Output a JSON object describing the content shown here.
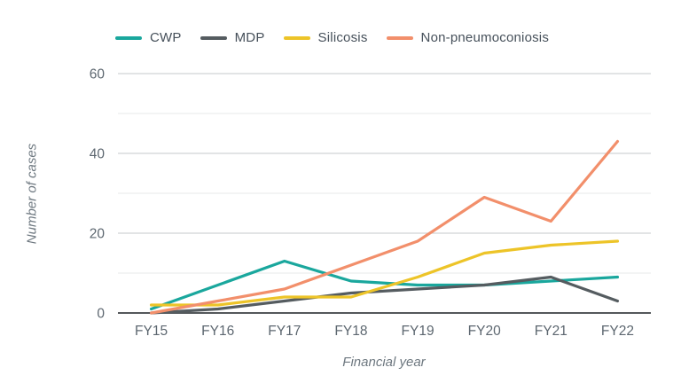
{
  "chart_data": {
    "type": "line",
    "title": "",
    "categories": [
      "FY15",
      "FY16",
      "FY17",
      "FY18",
      "FY19",
      "FY20",
      "FY21",
      "FY22"
    ],
    "series": [
      {
        "name": "CWP",
        "color": "#1aa79d",
        "values": [
          1,
          7,
          13,
          8,
          7,
          7,
          8,
          9
        ]
      },
      {
        "name": "MDP",
        "color": "#555c60",
        "values": [
          0,
          1,
          3,
          5,
          6,
          7,
          9,
          3
        ]
      },
      {
        "name": "Silicosis",
        "color": "#edc428",
        "values": [
          2,
          2,
          4,
          4,
          9,
          15,
          17,
          18
        ]
      },
      {
        "name": "Non-pneumoconiosis",
        "color": "#f28f6b",
        "values": [
          0,
          3,
          6,
          12,
          18,
          29,
          23,
          43
        ]
      }
    ],
    "xlabel": "Financial year",
    "ylabel": "Number of cases",
    "ylim": [
      0,
      60
    ],
    "yticks_labeled": [
      0,
      20,
      40,
      60
    ],
    "yticks_minor": [
      10,
      30,
      50
    ],
    "grid": true,
    "legend_position": "top",
    "styles": {
      "gridline_major_color": "#c5c9cb",
      "gridline_minor_color": "#e7e9e9",
      "axis_line_color": "#54585b",
      "tick_label_color": "#5d6770",
      "line_width": 3.2
    }
  }
}
